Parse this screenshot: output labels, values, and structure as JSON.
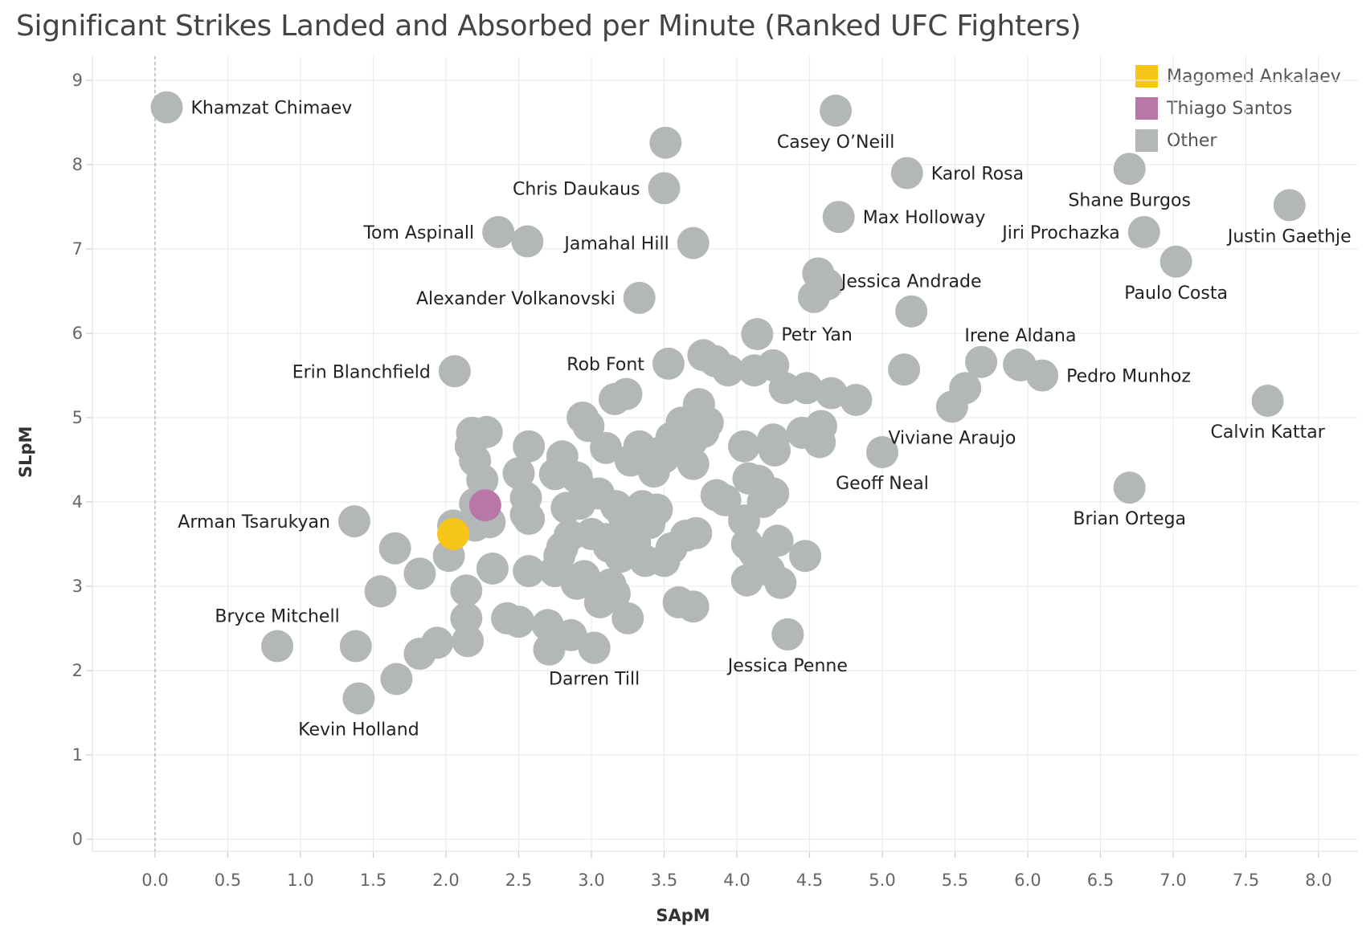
{
  "chart_data": {
    "type": "scatter",
    "title": "Significant Strikes Landed and Absorbed per Minute (Ranked UFC Fighters)",
    "xlabel": "SApM",
    "ylabel": "SLpM",
    "xlim": [
      -0.45,
      8.3
    ],
    "ylim": [
      -0.15,
      9.35
    ],
    "xticks": [
      "0.0",
      "0.5",
      "1.0",
      "1.5",
      "2.0",
      "2.5",
      "3.0",
      "3.5",
      "4.0",
      "4.5",
      "5.0",
      "5.5",
      "6.0",
      "6.5",
      "7.0",
      "7.5",
      "8.0"
    ],
    "yticks": [
      "0",
      "1",
      "2",
      "3",
      "4",
      "5",
      "6",
      "7",
      "8",
      "9"
    ],
    "grid": true,
    "legend_position": "top-right",
    "legend": [
      {
        "name": "Magomed Ankalaev",
        "color": "#f5c518"
      },
      {
        "name": "Thiago Santos",
        "color": "#b877a7"
      },
      {
        "name": "Other",
        "color": "#b3b7b7"
      }
    ],
    "labeled_points": [
      {
        "name": "Khamzat Chimaev",
        "x": 0.08,
        "y": 8.68,
        "label_pos": "right"
      },
      {
        "name": "Casey O’Neill",
        "x": 4.68,
        "y": 8.64,
        "label_pos": "below"
      },
      {
        "name": "Karol Rosa",
        "x": 5.17,
        "y": 7.9,
        "label_pos": "right"
      },
      {
        "name": "Shane Burgos",
        "x": 6.7,
        "y": 7.95,
        "label_pos": "below"
      },
      {
        "name": "Justin Gaethje",
        "x": 7.8,
        "y": 7.52,
        "label_pos": "below"
      },
      {
        "name": "Chris Daukaus",
        "x": 3.5,
        "y": 7.72,
        "label_pos": "left"
      },
      {
        "name": "Max Holloway",
        "x": 4.7,
        "y": 7.38,
        "label_pos": "right"
      },
      {
        "name": "Tom Aspinall",
        "x": 2.36,
        "y": 7.2,
        "label_pos": "left"
      },
      {
        "name": "Jamahal Hill",
        "x": 3.7,
        "y": 7.07,
        "label_pos": "left"
      },
      {
        "name": "Jiri Prochazka",
        "x": 6.8,
        "y": 7.2,
        "label_pos": "left"
      },
      {
        "name": "Paulo Costa",
        "x": 7.02,
        "y": 6.85,
        "label_pos": "below"
      },
      {
        "name": "Jessica Andrade",
        "x": 5.2,
        "y": 6.26,
        "label_pos": "above"
      },
      {
        "name": "Alexander Volkanovski",
        "x": 3.33,
        "y": 6.42,
        "label_pos": "left"
      },
      {
        "name": "Petr Yan",
        "x": 4.14,
        "y": 5.99,
        "label_pos": "right"
      },
      {
        "name": "Irene Aldana",
        "x": 5.95,
        "y": 5.62,
        "label_pos": "above"
      },
      {
        "name": "Pedro Munhoz",
        "x": 6.1,
        "y": 5.5,
        "label_pos": "right"
      },
      {
        "name": "Rob Font",
        "x": 3.53,
        "y": 5.64,
        "label_pos": "left"
      },
      {
        "name": "Erin Blanchfield",
        "x": 2.06,
        "y": 5.55,
        "label_pos": "left"
      },
      {
        "name": "Viviane Araujo",
        "x": 5.48,
        "y": 5.13,
        "label_pos": "below"
      },
      {
        "name": "Calvin Kattar",
        "x": 7.65,
        "y": 5.2,
        "label_pos": "below"
      },
      {
        "name": "Geoff Neal",
        "x": 5.0,
        "y": 4.59,
        "label_pos": "below"
      },
      {
        "name": "Brian Ortega",
        "x": 6.7,
        "y": 4.17,
        "label_pos": "below"
      },
      {
        "name": "Arman Tsarukyan",
        "x": 1.37,
        "y": 3.77,
        "label_pos": "left"
      },
      {
        "name": "Bryce Mitchell",
        "x": 0.84,
        "y": 2.29,
        "label_pos": "above"
      },
      {
        "name": "Kevin Holland",
        "x": 1.4,
        "y": 1.67,
        "label_pos": "below"
      },
      {
        "name": "Darren Till",
        "x": 3.02,
        "y": 2.27,
        "label_pos": "below"
      },
      {
        "name": "Jessica Penne",
        "x": 4.35,
        "y": 2.43,
        "label_pos": "below"
      }
    ],
    "highlight_points": [
      {
        "name": "Thiago Santos",
        "x": 2.27,
        "y": 3.96
      },
      {
        "name": "Magomed Ankalaev",
        "x": 2.05,
        "y": 3.62
      }
    ],
    "other_points": [
      [
        3.51,
        8.26
      ],
      [
        2.56,
        7.09
      ],
      [
        4.56,
        6.71
      ],
      [
        4.62,
        6.58
      ],
      [
        4.53,
        6.43
      ],
      [
        5.15,
        5.57
      ],
      [
        5.57,
        5.35
      ],
      [
        5.68,
        5.66
      ],
      [
        5.94,
        5.63
      ],
      [
        3.77,
        5.74
      ],
      [
        3.85,
        5.67
      ],
      [
        3.94,
        5.56
      ],
      [
        4.12,
        5.56
      ],
      [
        4.25,
        5.62
      ],
      [
        4.33,
        5.35
      ],
      [
        4.48,
        5.35
      ],
      [
        4.65,
        5.29
      ],
      [
        4.82,
        5.21
      ],
      [
        3.16,
        5.22
      ],
      [
        3.24,
        5.28
      ],
      [
        2.94,
        5.0
      ],
      [
        2.98,
        4.9
      ],
      [
        3.1,
        4.64
      ],
      [
        3.33,
        4.66
      ],
      [
        3.27,
        4.49
      ],
      [
        3.43,
        4.36
      ],
      [
        3.5,
        4.53
      ],
      [
        3.58,
        4.7
      ],
      [
        3.62,
        4.94
      ],
      [
        3.69,
        4.72
      ],
      [
        3.74,
        5.16
      ],
      [
        3.8,
        4.94
      ],
      [
        3.77,
        4.83
      ],
      [
        3.7,
        4.45
      ],
      [
        3.55,
        4.76
      ],
      [
        3.46,
        4.58
      ],
      [
        4.05,
        4.66
      ],
      [
        4.25,
        4.74
      ],
      [
        4.26,
        4.61
      ],
      [
        4.45,
        4.82
      ],
      [
        4.58,
        4.9
      ],
      [
        4.57,
        4.71
      ],
      [
        2.18,
        4.82
      ],
      [
        2.28,
        4.83
      ],
      [
        2.17,
        4.66
      ],
      [
        2.2,
        4.49
      ],
      [
        2.25,
        4.26
      ],
      [
        2.5,
        4.34
      ],
      [
        2.57,
        4.66
      ],
      [
        2.55,
        4.05
      ],
      [
        2.55,
        3.85
      ],
      [
        2.57,
        3.8
      ],
      [
        2.75,
        4.33
      ],
      [
        2.8,
        4.54
      ],
      [
        2.9,
        4.29
      ],
      [
        2.83,
        3.93
      ],
      [
        2.92,
        3.98
      ],
      [
        3.05,
        4.1
      ],
      [
        3.17,
        3.95
      ],
      [
        3.22,
        3.84
      ],
      [
        3.28,
        3.88
      ],
      [
        3.35,
        3.95
      ],
      [
        3.4,
        3.75
      ],
      [
        3.45,
        3.91
      ],
      [
        3.3,
        3.7
      ],
      [
        2.2,
        3.98
      ],
      [
        2.22,
        3.78
      ],
      [
        2.3,
        3.76
      ],
      [
        2.2,
        3.72
      ],
      [
        2.05,
        3.72
      ],
      [
        2.02,
        3.36
      ],
      [
        2.32,
        3.21
      ],
      [
        2.57,
        3.18
      ],
      [
        2.75,
        3.18
      ],
      [
        2.78,
        3.36
      ],
      [
        2.8,
        3.46
      ],
      [
        2.85,
        3.6
      ],
      [
        2.95,
        3.12
      ],
      [
        2.9,
        3.03
      ],
      [
        3.0,
        3.62
      ],
      [
        3.1,
        3.56
      ],
      [
        3.12,
        3.47
      ],
      [
        3.2,
        3.35
      ],
      [
        3.25,
        3.45
      ],
      [
        3.3,
        3.52
      ],
      [
        3.37,
        3.3
      ],
      [
        3.5,
        3.3
      ],
      [
        3.55,
        3.45
      ],
      [
        3.65,
        3.6
      ],
      [
        3.72,
        3.63
      ],
      [
        3.86,
        4.08
      ],
      [
        3.92,
        4.02
      ],
      [
        4.08,
        4.28
      ],
      [
        4.15,
        4.25
      ],
      [
        4.18,
        4.0
      ],
      [
        4.25,
        4.1
      ],
      [
        4.05,
        3.78
      ],
      [
        4.07,
        3.5
      ],
      [
        4.12,
        3.4
      ],
      [
        4.22,
        3.19
      ],
      [
        4.28,
        3.54
      ],
      [
        4.3,
        3.04
      ],
      [
        4.07,
        3.07
      ],
      [
        4.47,
        3.36
      ],
      [
        4.35,
        2.43
      ],
      [
        3.13,
        3.02
      ],
      [
        3.16,
        2.91
      ],
      [
        3.06,
        2.81
      ],
      [
        3.25,
        2.62
      ],
      [
        3.6,
        2.81
      ],
      [
        3.7,
        2.76
      ],
      [
        3.02,
        2.27
      ],
      [
        2.86,
        2.42
      ],
      [
        2.7,
        2.54
      ],
      [
        2.71,
        2.25
      ],
      [
        2.5,
        2.58
      ],
      [
        2.42,
        2.62
      ],
      [
        2.14,
        2.95
      ],
      [
        2.14,
        2.62
      ],
      [
        2.15,
        2.35
      ],
      [
        1.94,
        2.33
      ],
      [
        1.82,
        2.2
      ],
      [
        1.66,
        1.9
      ],
      [
        1.38,
        2.29
      ],
      [
        1.55,
        2.94
      ],
      [
        1.65,
        3.45
      ],
      [
        1.82,
        3.15
      ]
    ]
  }
}
